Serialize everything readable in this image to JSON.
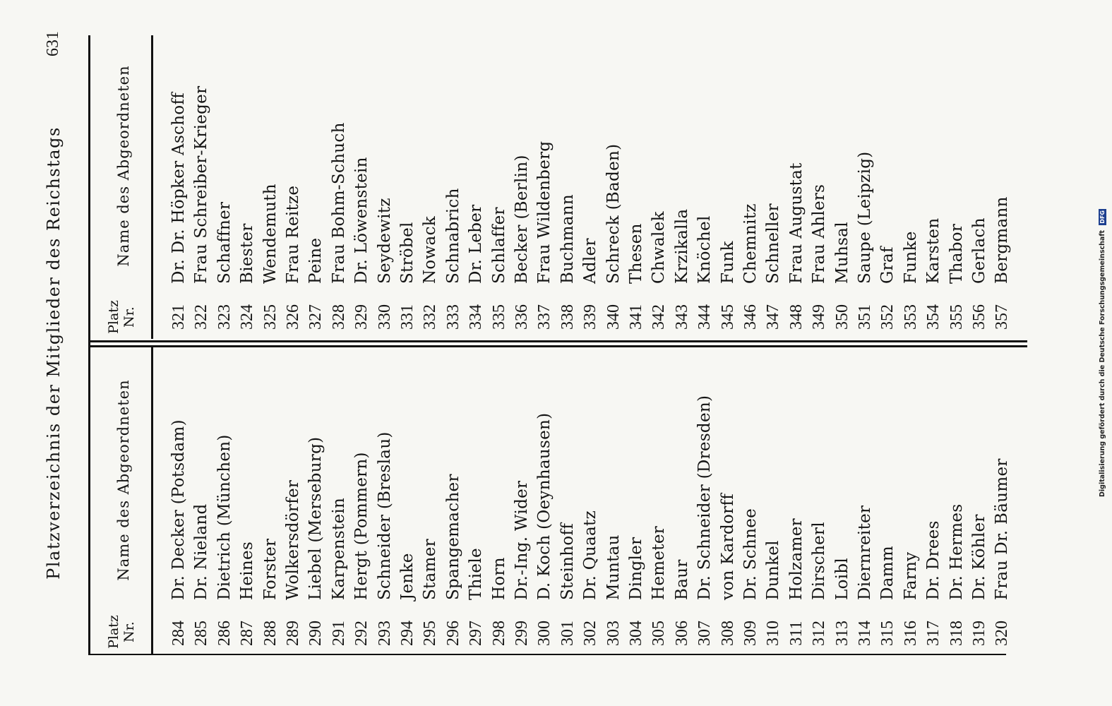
{
  "page": {
    "title": "Platzverzeichnis der Mitglieder des Reichstags",
    "page_number": "631"
  },
  "headers": {
    "platz_line1": "Platz",
    "platz_line2": "Nr.",
    "name": "Name des Abgeordneten"
  },
  "left_rows": [
    {
      "nr": "284",
      "name": "Dr. Decker (Potsdam)"
    },
    {
      "nr": "285",
      "name": "Dr. Nieland"
    },
    {
      "nr": "286",
      "name": "Dietrich (München)"
    },
    {
      "nr": "287",
      "name": "Heines"
    },
    {
      "nr": "288",
      "name": "Forster"
    },
    {
      "nr": "289",
      "name": "Wolkersdörfer"
    },
    {
      "nr": "290",
      "name": "Liebel (Merseburg)"
    },
    {
      "nr": "291",
      "name": "Karpenstein"
    },
    {
      "nr": "292",
      "name": "Hergt (Pommern)"
    },
    {
      "nr": "293",
      "name": "Schneider (Breslau)"
    },
    {
      "nr": "294",
      "name": "Jenke"
    },
    {
      "nr": "295",
      "name": "Stamer"
    },
    {
      "nr": "296",
      "name": "Spangemacher"
    },
    {
      "nr": "297",
      "name": "Thiele"
    },
    {
      "nr": "298",
      "name": "Horn"
    },
    {
      "nr": "299",
      "name": "Dr.-Ing. Wider"
    },
    {
      "nr": "300",
      "name": "D. Koch (Oeynhausen)"
    },
    {
      "nr": "301",
      "name": "Steinhoff"
    },
    {
      "nr": "302",
      "name": "Dr. Quaatz"
    },
    {
      "nr": "303",
      "name": "Muntau"
    },
    {
      "nr": "304",
      "name": "Dingler"
    },
    {
      "nr": "305",
      "name": "Hemeter"
    },
    {
      "nr": "306",
      "name": "Baur"
    },
    {
      "nr": "307",
      "name": "Dr. Schneider (Dresden)"
    },
    {
      "nr": "308",
      "name": "von Kardorff"
    },
    {
      "nr": "309",
      "name": "Dr. Schnee"
    },
    {
      "nr": "310",
      "name": "Dunkel"
    },
    {
      "nr": "311",
      "name": "Holzamer"
    },
    {
      "nr": "312",
      "name": "Dirscherl"
    },
    {
      "nr": "313",
      "name": "Loibl"
    },
    {
      "nr": "314",
      "name": "Diernreiter"
    },
    {
      "nr": "315",
      "name": "Damm"
    },
    {
      "nr": "316",
      "name": "Farny"
    },
    {
      "nr": "317",
      "name": "Dr. Drees"
    },
    {
      "nr": "318",
      "name": "Dr. Hermes"
    },
    {
      "nr": "319",
      "name": "Dr. Köhler"
    },
    {
      "nr": "320",
      "name": "Frau Dr. Bäumer"
    }
  ],
  "right_rows": [
    {
      "nr": "321",
      "name": "Dr. Dr. Höpker Aschoff"
    },
    {
      "nr": "322",
      "name": "Frau Schreiber-Krieger"
    },
    {
      "nr": "323",
      "name": "Schaffner"
    },
    {
      "nr": "324",
      "name": "Biester"
    },
    {
      "nr": "325",
      "name": "Wendemuth"
    },
    {
      "nr": "326",
      "name": "Frau Reitze"
    },
    {
      "nr": "327",
      "name": "Peine"
    },
    {
      "nr": "328",
      "name": "Frau Bohm-Schuch"
    },
    {
      "nr": "329",
      "name": "Dr. Löwenstein"
    },
    {
      "nr": "330",
      "name": "Seydewitz"
    },
    {
      "nr": "331",
      "name": "Ströbel"
    },
    {
      "nr": "332",
      "name": "Nowack"
    },
    {
      "nr": "333",
      "name": "Schnabrich"
    },
    {
      "nr": "334",
      "name": "Dr. Leber"
    },
    {
      "nr": "335",
      "name": "Schlaffer"
    },
    {
      "nr": "336",
      "name": "Becker (Berlin)"
    },
    {
      "nr": "337",
      "name": "Frau Wildenberg"
    },
    {
      "nr": "338",
      "name": "Buchmann"
    },
    {
      "nr": "339",
      "name": "Adler"
    },
    {
      "nr": "340",
      "name": "Schreck (Baden)"
    },
    {
      "nr": "341",
      "name": "Thesen"
    },
    {
      "nr": "342",
      "name": "Chwalek"
    },
    {
      "nr": "343",
      "name": "Krzikalla"
    },
    {
      "nr": "344",
      "name": "Knöchel"
    },
    {
      "nr": "345",
      "name": "Funk"
    },
    {
      "nr": "346",
      "name": "Chemnitz"
    },
    {
      "nr": "347",
      "name": "Schneller"
    },
    {
      "nr": "348",
      "name": "Frau Augustat"
    },
    {
      "nr": "349",
      "name": "Frau Ahlers"
    },
    {
      "nr": "350",
      "name": "Muhsal"
    },
    {
      "nr": "351",
      "name": "Saupe (Leipzig)"
    },
    {
      "nr": "352",
      "name": "Graf"
    },
    {
      "nr": "353",
      "name": "Funke"
    },
    {
      "nr": "354",
      "name": "Karsten"
    },
    {
      "nr": "355",
      "name": "Thabor"
    },
    {
      "nr": "356",
      "name": "Gerlach"
    },
    {
      "nr": "357",
      "name": "Bergmann"
    }
  ],
  "footer": {
    "note": "Digitalisierung gefördert durch die Deutsche Forschungsgemeinschaft",
    "logo": "DFG"
  }
}
